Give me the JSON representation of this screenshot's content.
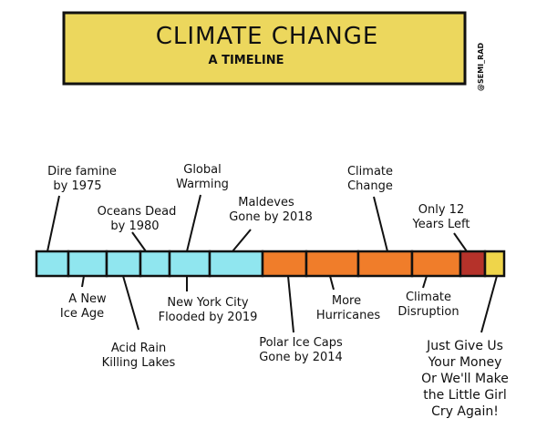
{
  "header": {
    "title": "CLIMATE CHANGE",
    "subtitle": "A TIMELINE",
    "credit": "@SEMI_RAD"
  },
  "colors": {
    "banner": "#ecd75d",
    "cyan": "#90e6ef",
    "orange": "#f07d2a",
    "red": "#b5322a",
    "yellow": "#efd54a"
  },
  "segments": [
    "cyan",
    "cyan",
    "cyan",
    "cyan",
    "cyan",
    "cyan",
    "orange",
    "orange",
    "orange",
    "orange",
    "red",
    "yellow"
  ],
  "labels_top": [
    {
      "lines": [
        "Dire famine",
        "by 1975"
      ]
    },
    {
      "lines": [
        "Oceans Dead",
        "by 1980"
      ]
    },
    {
      "lines": [
        "Global",
        "Warming"
      ]
    },
    {
      "lines": [
        "Maldeves",
        "Gone by 2018"
      ]
    },
    {
      "lines": [
        "Climate",
        "Change"
      ]
    },
    {
      "lines": [
        "Only 12",
        "Years Left"
      ]
    }
  ],
  "labels_bottom": [
    {
      "lines": [
        "A New",
        "Ice Age"
      ]
    },
    {
      "lines": [
        "Acid Rain",
        "Killing Lakes"
      ]
    },
    {
      "lines": [
        "New York City",
        "Flooded by 2019"
      ]
    },
    {
      "lines": [
        "Polar Ice Caps",
        "Gone by 2014"
      ]
    },
    {
      "lines": [
        "More",
        "Hurricanes"
      ]
    },
    {
      "lines": [
        "Climate",
        "Disruption"
      ]
    },
    {
      "lines": [
        "Just Give Us",
        "Your Money",
        "Or We'll Make",
        "the Little Girl",
        "Cry Again!"
      ]
    }
  ]
}
